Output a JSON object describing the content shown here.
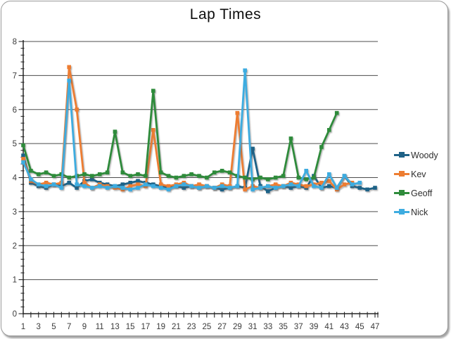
{
  "frame": {
    "background": "#FFFFFF",
    "border_color": "#9A9A9A"
  },
  "chart_data": {
    "type": "line",
    "title": "Lap Times",
    "xlabel": "",
    "ylabel": "",
    "x": [
      1,
      2,
      3,
      4,
      5,
      6,
      7,
      8,
      9,
      10,
      11,
      12,
      13,
      14,
      15,
      16,
      17,
      18,
      19,
      20,
      21,
      22,
      23,
      24,
      25,
      26,
      27,
      28,
      29,
      30,
      31,
      32,
      33,
      34,
      35,
      36,
      37,
      38,
      39,
      40,
      41,
      42,
      43,
      44,
      45,
      46,
      47
    ],
    "x_label_step": 2,
    "ylim": [
      0,
      8
    ],
    "y_ticks": [
      0,
      1,
      2,
      3,
      4,
      5,
      6,
      7,
      8
    ],
    "y_minor_step": 0.2,
    "grid": "horizontal-major",
    "legend_position": "right",
    "axis_color": "#262626",
    "gridline_color": "#4d4d4d",
    "tick_label_color": "#3a3a3a",
    "series": [
      {
        "name": "Woody",
        "color": "#1F6287",
        "values": [
          4.65,
          3.85,
          3.75,
          3.7,
          3.8,
          3.75,
          3.85,
          3.7,
          3.9,
          3.95,
          3.85,
          3.8,
          3.75,
          3.8,
          3.85,
          3.9,
          3.85,
          3.8,
          3.75,
          3.7,
          3.75,
          3.7,
          3.75,
          3.7,
          3.75,
          3.7,
          3.65,
          3.7,
          3.75,
          3.7,
          4.85,
          3.75,
          3.6,
          3.7,
          3.75,
          3.7,
          3.75,
          3.7,
          4.05,
          3.7,
          3.75,
          3.7,
          4.05,
          3.75,
          3.7,
          3.65,
          3.7
        ]
      },
      {
        "name": "Kev",
        "color": "#ED7D31",
        "values": [
          4.55,
          3.9,
          3.8,
          3.85,
          3.8,
          3.85,
          7.25,
          6.0,
          3.85,
          3.7,
          3.8,
          3.75,
          3.7,
          3.65,
          3.75,
          3.8,
          3.75,
          5.4,
          3.8,
          3.75,
          3.8,
          3.85,
          3.75,
          3.8,
          3.75,
          3.7,
          3.8,
          3.75,
          5.9,
          3.65,
          3.75,
          3.7,
          3.75,
          3.8,
          3.75,
          3.85,
          3.8,
          3.75,
          3.8,
          3.85,
          3.9,
          3.65,
          3.8,
          3.85,
          null,
          null,
          null
        ]
      },
      {
        "name": "Geoff",
        "color": "#2F8B3B",
        "values": [
          4.95,
          4.2,
          4.1,
          4.15,
          4.05,
          4.1,
          4.0,
          4.05,
          4.1,
          4.05,
          4.1,
          4.15,
          5.35,
          4.15,
          4.05,
          4.1,
          4.05,
          6.55,
          4.15,
          4.05,
          4.0,
          4.05,
          4.1,
          4.05,
          4.0,
          4.15,
          4.2,
          4.15,
          4.05,
          4.0,
          3.95,
          4.0,
          3.95,
          4.0,
          4.05,
          5.15,
          4.0,
          3.95,
          4.0,
          4.9,
          5.4,
          5.9,
          null,
          null,
          null,
          null,
          null
        ]
      },
      {
        "name": "Nick",
        "color": "#3EACE0",
        "values": [
          4.45,
          3.95,
          3.8,
          3.75,
          3.8,
          3.7,
          6.85,
          3.8,
          3.75,
          3.7,
          3.75,
          3.7,
          3.75,
          3.7,
          3.65,
          3.7,
          3.8,
          3.75,
          3.7,
          3.65,
          3.75,
          3.8,
          3.75,
          3.7,
          3.75,
          3.7,
          3.75,
          3.7,
          3.75,
          7.15,
          3.65,
          3.7,
          3.75,
          3.7,
          3.75,
          3.8,
          3.75,
          4.2,
          3.75,
          3.7,
          4.1,
          3.7,
          4.05,
          3.8,
          3.85,
          null,
          null
        ]
      }
    ]
  }
}
